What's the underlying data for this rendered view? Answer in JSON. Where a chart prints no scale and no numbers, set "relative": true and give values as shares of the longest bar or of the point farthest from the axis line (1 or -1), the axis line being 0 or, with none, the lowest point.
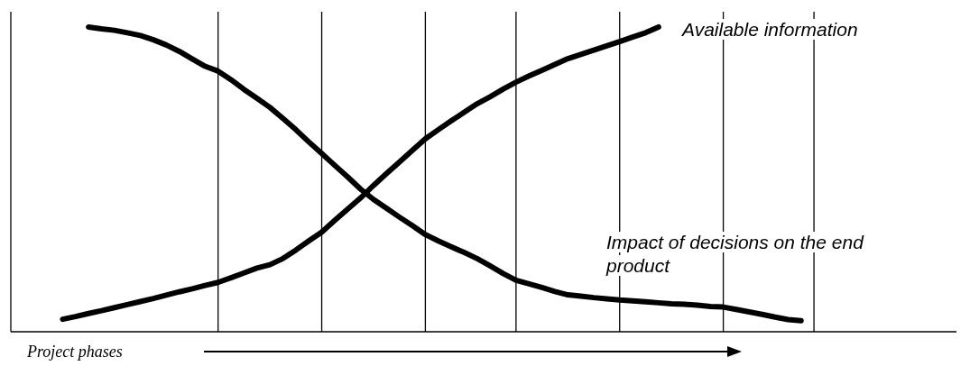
{
  "chart_data": {
    "type": "line",
    "relative": true,
    "xlabel": "Project phases",
    "marker": "none",
    "line_style": "solid",
    "categories": [
      null,
      null,
      null,
      null,
      null,
      null,
      null,
      null,
      null,
      null,
      null,
      null,
      null,
      null,
      null,
      null,
      null,
      null,
      null,
      null,
      null,
      null,
      null,
      null,
      null,
      null,
      null,
      null,
      null,
      null,
      null,
      null,
      null,
      null,
      null,
      null,
      null,
      null,
      null,
      null,
      null,
      null,
      null,
      null,
      null,
      null,
      null,
      null,
      null,
      null,
      null,
      null,
      null,
      null,
      null,
      null,
      null,
      null,
      null,
      null,
      null,
      null,
      null,
      null,
      null,
      null,
      null,
      null,
      null,
      null,
      null,
      null,
      null,
      null
    ],
    "grid": "x",
    "series": [
      {
        "name": "Available information",
        "color": "#000000",
        "values": [
          null,
          null,
          null,
          null,
          0.041,
          0.05,
          0.06,
          0.069,
          0.079,
          0.089,
          0.099,
          0.109,
          0.12,
          0.131,
          0.141,
          0.152,
          0.162,
          0.177,
          0.193,
          0.209,
          0.22,
          0.24,
          0.268,
          0.298,
          0.327,
          0.365,
          0.402,
          0.439,
          0.48,
          0.519,
          0.557,
          0.595,
          0.633,
          0.663,
          0.692,
          0.72,
          0.748,
          0.771,
          0.796,
          0.819,
          0.839,
          0.858,
          0.877,
          0.896,
          0.91,
          0.924,
          0.938,
          0.952,
          0.967,
          0.981,
          1.0,
          null,
          null,
          null,
          null,
          null,
          null,
          null,
          null,
          null,
          null,
          null,
          null,
          null,
          null,
          null,
          null,
          null,
          null,
          null,
          null,
          null,
          null,
          null
        ]
      },
      {
        "name": "Impact of decisions on the end product",
        "color": "#000000",
        "values": [
          null,
          null,
          null,
          null,
          null,
          null,
          1.0,
          0.994,
          0.989,
          0.981,
          0.972,
          0.958,
          0.941,
          0.92,
          0.895,
          0.871,
          0.855,
          0.827,
          0.795,
          0.766,
          0.736,
          0.7,
          0.663,
          0.623,
          0.585,
          0.546,
          0.508,
          0.468,
          0.434,
          0.405,
          0.376,
          0.348,
          0.319,
          0.298,
          0.279,
          0.26,
          0.24,
          0.216,
          0.191,
          0.169,
          0.157,
          0.145,
          0.132,
          0.121,
          0.117,
          0.112,
          0.108,
          0.104,
          0.101,
          0.098,
          0.095,
          0.092,
          0.09,
          0.087,
          0.083,
          0.081,
          0.073,
          0.065,
          0.057,
          0.048,
          0.04,
          0.036,
          null,
          null,
          null,
          null,
          null,
          null,
          null,
          null,
          null,
          null,
          null,
          null
        ]
      }
    ]
  }
}
